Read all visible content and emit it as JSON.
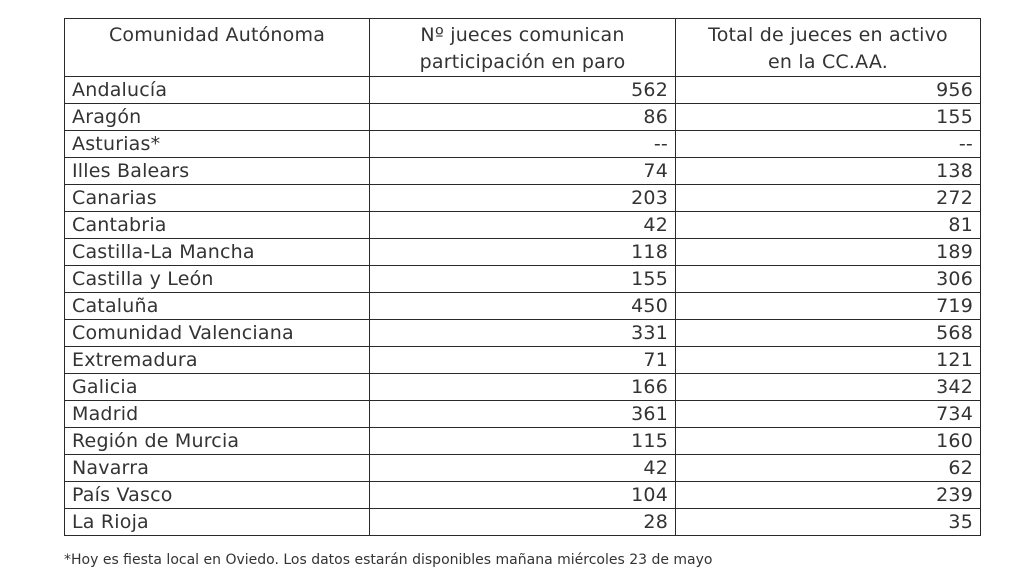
{
  "table": {
    "headers": [
      "Comunidad Autónoma",
      "Nº jueces comunican participación en paro",
      "Total de jueces en activo en la CC.AA."
    ],
    "header_lines": [
      [
        "Comunidad Autónoma"
      ],
      [
        "Nº jueces comunican",
        "participación en paro"
      ],
      [
        "Total de jueces en activo",
        "en la CC.AA."
      ]
    ],
    "rows": [
      {
        "region": "Andalucía",
        "strike": "562",
        "total": "956"
      },
      {
        "region": "Aragón",
        "strike": "86",
        "total": "155"
      },
      {
        "region": "Asturias*",
        "strike": "--",
        "total": "--"
      },
      {
        "region": "Illes Balears",
        "strike": "74",
        "total": "138"
      },
      {
        "region": "Canarias",
        "strike": "203",
        "total": "272"
      },
      {
        "region": "Cantabria",
        "strike": "42",
        "total": "81"
      },
      {
        "region": "Castilla-La Mancha",
        "strike": "118",
        "total": "189"
      },
      {
        "region": "Castilla y León",
        "strike": "155",
        "total": "306"
      },
      {
        "region": "Cataluña",
        "strike": "450",
        "total": "719"
      },
      {
        "region": "Comunidad Valenciana",
        "strike": "331",
        "total": "568"
      },
      {
        "region": "Extremadura",
        "strike": "71",
        "total": "121"
      },
      {
        "region": "Galicia",
        "strike": "166",
        "total": "342"
      },
      {
        "region": "Madrid",
        "strike": "361",
        "total": "734"
      },
      {
        "region": "Región de Murcia",
        "strike": "115",
        "total": "160"
      },
      {
        "region": "Navarra",
        "strike": "42",
        "total": "62"
      },
      {
        "region": "País Vasco",
        "strike": "104",
        "total": "239"
      },
      {
        "region": "La Rioja",
        "strike": "28",
        "total": "35"
      }
    ]
  },
  "footnote": "*Hoy es fiesta local en Oviedo. Los datos estarán disponibles mañana miércoles 23 de mayo"
}
